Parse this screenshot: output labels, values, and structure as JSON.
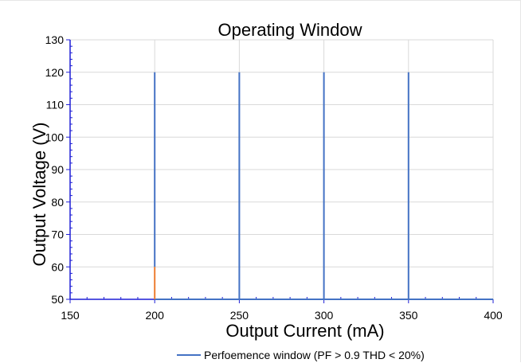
{
  "chart_data": {
    "type": "line",
    "title": "Operating Window",
    "xlabel": "Output Current (mA)",
    "ylabel": "Output Voltage (V)",
    "xlim": [
      150,
      400
    ],
    "ylim": [
      50,
      130
    ],
    "x_ticks": [
      150,
      200,
      250,
      300,
      350,
      400
    ],
    "y_ticks": [
      50,
      60,
      70,
      80,
      90,
      100,
      110,
      120,
      130
    ],
    "grid": true,
    "legend_position": "bottom",
    "series": [
      {
        "name": "Perfoemence window (PF > 0.9 THD < 20%)",
        "color": "#4472c4",
        "segments": [
          [
            [
              200,
              60
            ],
            [
              200,
              120
            ]
          ],
          [
            [
              250,
              50
            ],
            [
              250,
              120
            ]
          ],
          [
            [
              300,
              50
            ],
            [
              300,
              120
            ]
          ],
          [
            [
              350,
              50
            ],
            [
              350,
              120
            ]
          ],
          [
            [
              200,
              50
            ],
            [
              400,
              50
            ]
          ]
        ]
      },
      {
        "color": "#ed7d31",
        "segments": [
          [
            [
              200,
              50
            ],
            [
              200,
              60
            ]
          ]
        ]
      }
    ]
  }
}
